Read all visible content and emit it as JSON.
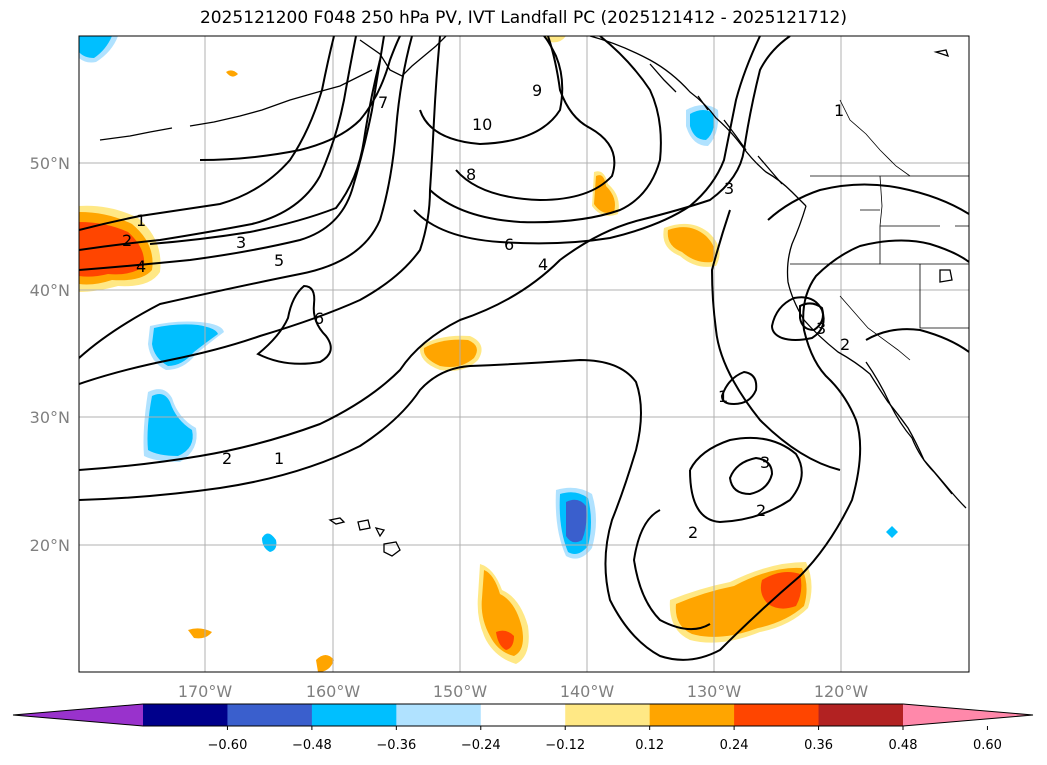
{
  "title": "2025121200 F048 250 hPa PV, IVT Landfall PC (2025121412 - 2025121712)",
  "longitude_labels": [
    "170°W",
    "160°W",
    "150°W",
    "140°W",
    "130°W",
    "120°W"
  ],
  "latitude_labels": [
    "50°N",
    "40°N",
    "30°N",
    "20°N"
  ],
  "colorbar": {
    "ticks": [
      "−0.60",
      "−0.48",
      "−0.36",
      "−0.24",
      "−0.12",
      "0.12",
      "0.24",
      "0.36",
      "0.48",
      "0.60"
    ],
    "colors": [
      "#9932cc",
      "#00008b",
      "#3a5fcd",
      "#00bfff",
      "#b0e2ff",
      "#ffffff",
      "#ffe885",
      "#ffa500",
      "#ff4500",
      "#b22222",
      "#ff88aa"
    ]
  },
  "contour_labels": [
    "1",
    "2",
    "4",
    "3",
    "5",
    "6",
    "7",
    "10",
    "9",
    "8",
    "6",
    "4",
    "3",
    "1",
    "1",
    "2",
    "3",
    "2",
    "1",
    "2",
    "3",
    "2"
  ]
}
